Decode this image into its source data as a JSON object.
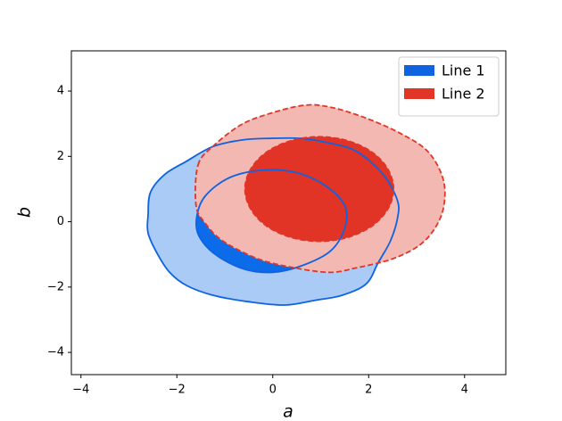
{
  "chart_data": {
    "type": "contour",
    "xlabel": "a",
    "ylabel": "b",
    "xlim": [
      -4.2,
      4.86
    ],
    "ylim": [
      -4.68,
      5.23
    ],
    "xticks": [
      {
        "value": -4,
        "label": "−4"
      },
      {
        "value": -2,
        "label": "−2"
      },
      0,
      2,
      4
    ],
    "yticks": [
      {
        "value": -4,
        "label": "−4"
      },
      {
        "value": -2,
        "label": "−2"
      },
      0,
      2,
      4
    ],
    "legend": "upper right",
    "series": [
      {
        "name": "Line 1",
        "color": "#0f63e0",
        "linestyle": "solid",
        "contours": [
          {
            "fill": "#a9cbf6",
            "x": [
              -2.55,
              -2.25,
              -1.8,
              -1.25,
              -0.65,
              -0.1,
              0.6,
              1.2,
              1.75,
              2.3,
              2.6,
              2.6,
              2.45,
              2.2,
              1.95,
              1.45,
              0.9,
              0.25,
              -0.5,
              -1.25,
              -1.8,
              -2.15,
              -2.4,
              -2.6,
              -2.6
            ],
            "y": [
              0.9,
              1.45,
              1.85,
              2.3,
              2.5,
              2.55,
              2.55,
              2.4,
              2.15,
              1.45,
              0.65,
              0.1,
              -0.6,
              -1.25,
              -1.9,
              -2.25,
              -2.4,
              -2.55,
              -2.45,
              -2.25,
              -1.95,
              -1.55,
              -1.0,
              -0.35,
              0.2
            ]
          },
          {
            "fill": "#0b6be8",
            "x": [
              -1.58,
              -1.4,
              -0.9,
              -0.2,
              0.5,
              1.1,
              1.5,
              1.5,
              1.2,
              0.6,
              0,
              -0.6,
              -1.2,
              -1.55
            ],
            "y": [
              0.2,
              0.8,
              1.35,
              1.58,
              1.5,
              1.1,
              0.5,
              -0.2,
              -0.9,
              -1.35,
              -1.55,
              -1.45,
              -1.0,
              -0.4
            ]
          }
        ]
      },
      {
        "name": "Line 2",
        "color": "#e03527",
        "linestyle": "dashed",
        "contours": [
          {
            "fill": "#f4b8b3",
            "x": [
              -1.56,
              -1.23,
              -0.67,
              -0.11,
              0.63,
              1.19,
              1.93,
              2.68,
              3.24,
              3.55,
              3.57,
              3.39,
              3.05,
              2.49,
              1.75,
              1.19,
              0.45,
              -0.3,
              -1.04,
              -1.41,
              -1.6
            ],
            "y": [
              1.73,
              2.33,
              2.96,
              3.29,
              3.56,
              3.51,
              3.18,
              2.69,
              2.14,
              1.32,
              0.5,
              -0.18,
              -0.73,
              -1.14,
              -1.41,
              -1.55,
              -1.41,
              -1.14,
              -0.59,
              -0.04,
              0.5
            ]
          },
          {
            "fill": "#e13426",
            "x": [
              2.52,
              2.4,
              2.07,
              1.56,
              0.97,
              0.38,
              -0.13,
              -0.46,
              -0.58,
              -0.46,
              -0.13,
              0.38,
              0.97,
              1.56,
              2.07,
              2.4
            ],
            "y": [
              1.0,
              1.61,
              2.13,
              2.48,
              2.6,
              2.48,
              2.13,
              1.61,
              1.0,
              0.39,
              -0.13,
              -0.48,
              -0.6,
              -0.48,
              -0.13,
              0.39
            ]
          }
        ]
      }
    ]
  }
}
